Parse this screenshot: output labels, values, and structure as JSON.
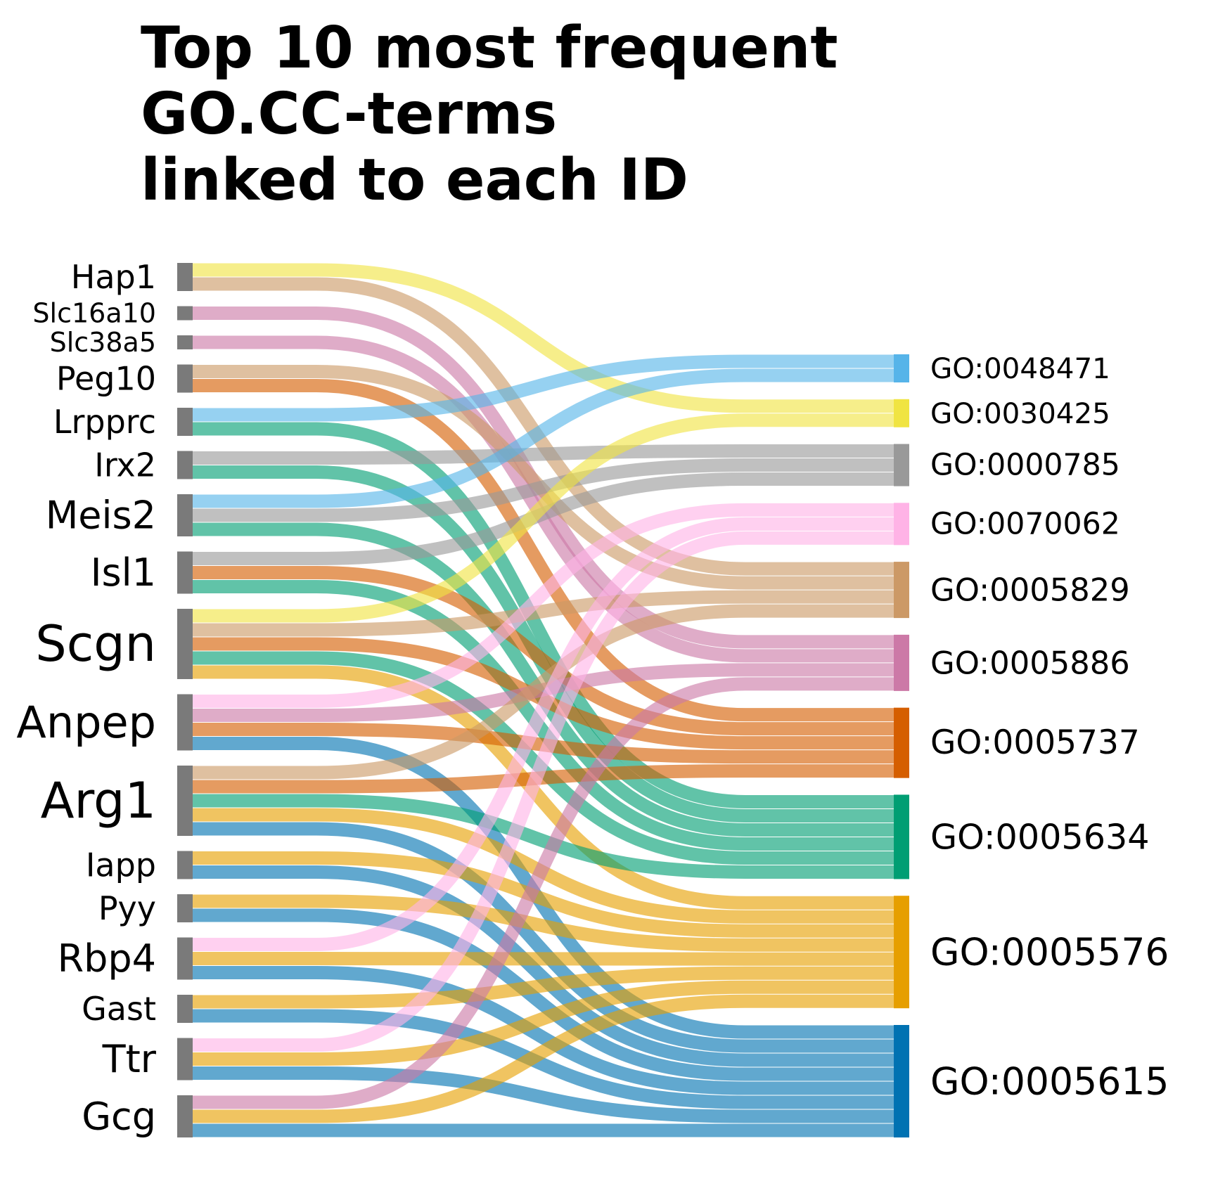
{
  "title_lines": [
    "Top 10 most frequent",
    "GO.CC-terms",
    "linked to each ID"
  ],
  "colors": {
    "node_left": "#7a7a7a",
    "GO:0048471": "#56b4e9",
    "GO:0030425": "#f0e442",
    "GO:0000785": "#999999",
    "GO:0070062": "#ffb3e6",
    "GO:0005829": "#cc9966",
    "GO:0005886": "#cc79a7",
    "GO:0005737": "#d55e00",
    "GO:0005634": "#009e73",
    "GO:0005576": "#e69f00",
    "GO:0005615": "#0072b2"
  },
  "chart_data": {
    "type": "sankey",
    "title": "Top 10 most frequent GO.CC-terms linked to each ID",
    "sources": [
      "Hap1",
      "Slc16a10",
      "Slc38a5",
      "Peg10",
      "Lrpprc",
      "Irx2",
      "Meis2",
      "Isl1",
      "Scgn",
      "Anpep",
      "Arg1",
      "Iapp",
      "Pyy",
      "Rbp4",
      "Gast",
      "Ttr",
      "Gcg"
    ],
    "targets": [
      "GO:0048471",
      "GO:0030425",
      "GO:0000785",
      "GO:0070062",
      "GO:0005829",
      "GO:0005886",
      "GO:0005737",
      "GO:0005634",
      "GO:0005576",
      "GO:0005615"
    ],
    "links": [
      {
        "source": "Hap1",
        "target": "GO:0030425",
        "value": 1
      },
      {
        "source": "Hap1",
        "target": "GO:0005829",
        "value": 1
      },
      {
        "source": "Slc16a10",
        "target": "GO:0005886",
        "value": 1
      },
      {
        "source": "Slc38a5",
        "target": "GO:0005886",
        "value": 1
      },
      {
        "source": "Peg10",
        "target": "GO:0005829",
        "value": 1
      },
      {
        "source": "Peg10",
        "target": "GO:0005737",
        "value": 1
      },
      {
        "source": "Lrpprc",
        "target": "GO:0048471",
        "value": 1
      },
      {
        "source": "Lrpprc",
        "target": "GO:0005634",
        "value": 1
      },
      {
        "source": "Irx2",
        "target": "GO:0000785",
        "value": 1
      },
      {
        "source": "Irx2",
        "target": "GO:0005634",
        "value": 1
      },
      {
        "source": "Meis2",
        "target": "GO:0048471",
        "value": 1
      },
      {
        "source": "Meis2",
        "target": "GO:0000785",
        "value": 1
      },
      {
        "source": "Meis2",
        "target": "GO:0005634",
        "value": 1
      },
      {
        "source": "Isl1",
        "target": "GO:0000785",
        "value": 1
      },
      {
        "source": "Isl1",
        "target": "GO:0005737",
        "value": 1
      },
      {
        "source": "Isl1",
        "target": "GO:0005634",
        "value": 1
      },
      {
        "source": "Scgn",
        "target": "GO:0030425",
        "value": 1
      },
      {
        "source": "Scgn",
        "target": "GO:0005829",
        "value": 1
      },
      {
        "source": "Scgn",
        "target": "GO:0005737",
        "value": 1
      },
      {
        "source": "Scgn",
        "target": "GO:0005634",
        "value": 1
      },
      {
        "source": "Scgn",
        "target": "GO:0005576",
        "value": 1
      },
      {
        "source": "Anpep",
        "target": "GO:0070062",
        "value": 1
      },
      {
        "source": "Anpep",
        "target": "GO:0005886",
        "value": 1
      },
      {
        "source": "Anpep",
        "target": "GO:0005737",
        "value": 1
      },
      {
        "source": "Anpep",
        "target": "GO:0005615",
        "value": 1
      },
      {
        "source": "Arg1",
        "target": "GO:0005829",
        "value": 1
      },
      {
        "source": "Arg1",
        "target": "GO:0005737",
        "value": 1
      },
      {
        "source": "Arg1",
        "target": "GO:0005634",
        "value": 1
      },
      {
        "source": "Arg1",
        "target": "GO:0005576",
        "value": 1
      },
      {
        "source": "Arg1",
        "target": "GO:0005615",
        "value": 1
      },
      {
        "source": "Iapp",
        "target": "GO:0005576",
        "value": 1
      },
      {
        "source": "Iapp",
        "target": "GO:0005615",
        "value": 1
      },
      {
        "source": "Pyy",
        "target": "GO:0005576",
        "value": 1
      },
      {
        "source": "Pyy",
        "target": "GO:0005615",
        "value": 1
      },
      {
        "source": "Rbp4",
        "target": "GO:0070062",
        "value": 1
      },
      {
        "source": "Rbp4",
        "target": "GO:0005576",
        "value": 1
      },
      {
        "source": "Rbp4",
        "target": "GO:0005615",
        "value": 1
      },
      {
        "source": "Gast",
        "target": "GO:0005576",
        "value": 1
      },
      {
        "source": "Gast",
        "target": "GO:0005615",
        "value": 1
      },
      {
        "source": "Ttr",
        "target": "GO:0070062",
        "value": 1
      },
      {
        "source": "Ttr",
        "target": "GO:0005576",
        "value": 1
      },
      {
        "source": "Ttr",
        "target": "GO:0005615",
        "value": 1
      },
      {
        "source": "Gcg",
        "target": "GO:0005886",
        "value": 1
      },
      {
        "source": "Gcg",
        "target": "GO:0005576",
        "value": 1
      },
      {
        "source": "Gcg",
        "target": "GO:0005615",
        "value": 1
      }
    ]
  }
}
